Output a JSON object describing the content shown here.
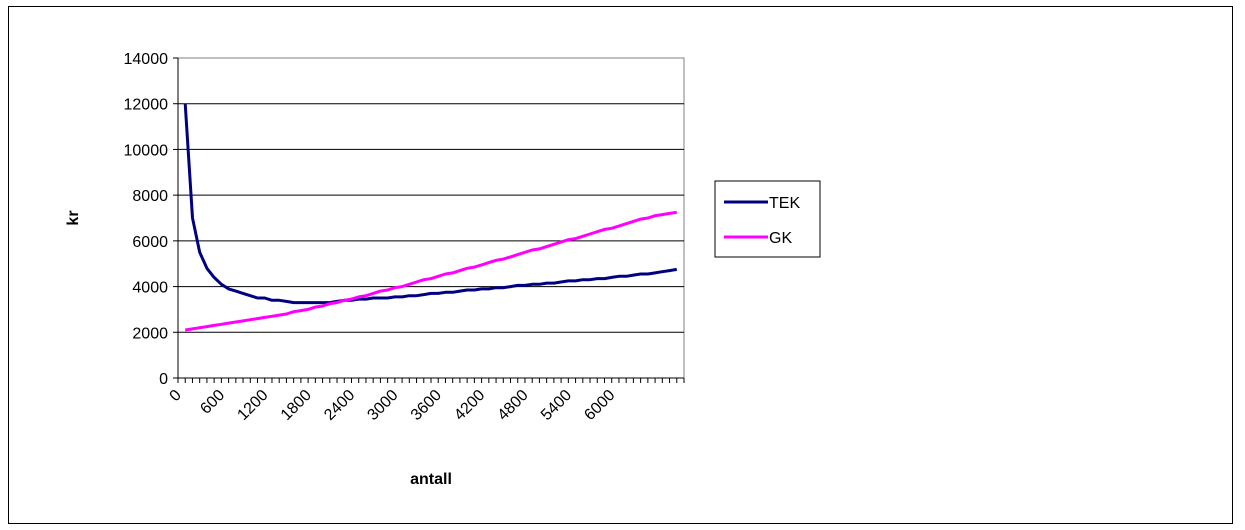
{
  "chart_data": {
    "type": "line",
    "title": "",
    "xlabel": "antall",
    "ylabel": "kr",
    "ylim": [
      0,
      14000
    ],
    "yticks": [
      0,
      2000,
      4000,
      6000,
      8000,
      10000,
      12000,
      14000
    ],
    "xtick_labels": [
      "0",
      "600",
      "1200",
      "1800",
      "2400",
      "3000",
      "3600",
      "4200",
      "4800",
      "5400",
      "6000"
    ],
    "xlim": [
      0,
      7000
    ],
    "x_step": 100,
    "grid": "horizontal",
    "legend_position": "right",
    "colors": {
      "TEK": "#000080",
      "GK": "#ff00ff"
    },
    "series": [
      {
        "name": "TEK",
        "x": [
          100,
          200,
          300,
          400,
          500,
          600,
          700,
          800,
          900,
          1000,
          1100,
          1200,
          1300,
          1400,
          1500,
          1600,
          1700,
          1800,
          1900,
          2000,
          2100,
          2200,
          2300,
          2400,
          2500,
          2600,
          2700,
          2800,
          2900,
          3000,
          3100,
          3200,
          3300,
          3400,
          3500,
          3600,
          3700,
          3800,
          3900,
          4000,
          4100,
          4200,
          4300,
          4400,
          4500,
          4600,
          4700,
          4800,
          4900,
          5000,
          5100,
          5200,
          5300,
          5400,
          5500,
          5600,
          5700,
          5800,
          5900,
          6000,
          6100,
          6200,
          6300,
          6400,
          6500,
          6600,
          6700,
          6800,
          6900
        ],
        "values": [
          12000,
          7000,
          5500,
          4800,
          4400,
          4100,
          3900,
          3800,
          3700,
          3600,
          3500,
          3500,
          3400,
          3400,
          3350,
          3300,
          3300,
          3300,
          3300,
          3300,
          3300,
          3350,
          3400,
          3400,
          3450,
          3450,
          3500,
          3500,
          3500,
          3550,
          3550,
          3600,
          3600,
          3650,
          3700,
          3700,
          3750,
          3750,
          3800,
          3850,
          3850,
          3900,
          3900,
          3950,
          3950,
          4000,
          4050,
          4050,
          4100,
          4100,
          4150,
          4150,
          4200,
          4250,
          4250,
          4300,
          4300,
          4350,
          4350,
          4400,
          4450,
          4450,
          4500,
          4550,
          4550,
          4600,
          4650,
          4700,
          4750
        ]
      },
      {
        "name": "GK",
        "x": [
          100,
          200,
          300,
          400,
          500,
          600,
          700,
          800,
          900,
          1000,
          1100,
          1200,
          1300,
          1400,
          1500,
          1600,
          1700,
          1800,
          1900,
          2000,
          2100,
          2200,
          2300,
          2400,
          2500,
          2600,
          2700,
          2800,
          2900,
          3000,
          3100,
          3200,
          3300,
          3400,
          3500,
          3600,
          3700,
          3800,
          3900,
          4000,
          4100,
          4200,
          4300,
          4400,
          4500,
          4600,
          4700,
          4800,
          4900,
          5000,
          5100,
          5200,
          5300,
          5400,
          5500,
          5600,
          5700,
          5800,
          5900,
          6000,
          6100,
          6200,
          6300,
          6400,
          6500,
          6600,
          6700,
          6800,
          6900
        ],
        "values": [
          2100,
          2150,
          2200,
          2250,
          2300,
          2350,
          2400,
          2450,
          2500,
          2550,
          2600,
          2650,
          2700,
          2750,
          2800,
          2900,
          2950,
          3000,
          3100,
          3150,
          3250,
          3300,
          3400,
          3450,
          3550,
          3600,
          3700,
          3800,
          3850,
          3950,
          4000,
          4100,
          4200,
          4300,
          4350,
          4450,
          4550,
          4600,
          4700,
          4800,
          4850,
          4950,
          5050,
          5150,
          5200,
          5300,
          5400,
          5500,
          5600,
          5650,
          5750,
          5850,
          5950,
          6050,
          6100,
          6200,
          6300,
          6400,
          6500,
          6550,
          6650,
          6750,
          6850,
          6950,
          7000,
          7100,
          7150,
          7200,
          7250
        ]
      }
    ]
  }
}
